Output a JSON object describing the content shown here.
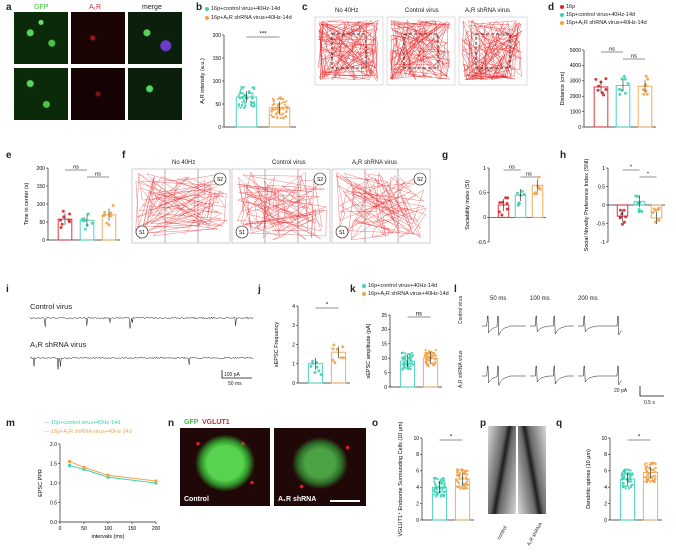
{
  "colors": {
    "p16": "#d9232a",
    "control": "#3ed1b5",
    "shrna": "#f2a34a",
    "track": "#e8262a"
  },
  "panel_letters": [
    "a",
    "b",
    "c",
    "d",
    "e",
    "f",
    "g",
    "h",
    "i",
    "j",
    "k",
    "l",
    "m",
    "n",
    "o",
    "p",
    "q"
  ],
  "a": {
    "cols": [
      "GFP",
      "A₁R",
      "merge"
    ]
  },
  "b": {
    "legend": [
      "16p+control virus+40Hz-14d",
      "16p+A₁R shRNA virus+40Hz-14d"
    ],
    "ylabel": "A₁R intensity (a.u.)",
    "sig": "***"
  },
  "c": {
    "titles": [
      "No 40Hz",
      "Control virus",
      "A₁R shRNA virus"
    ]
  },
  "d": {
    "legend": [
      "16p",
      "16p+control virus+40Hz-14d",
      "16p+A₁R shRNA virus+40Hz-14d"
    ],
    "ylabel": "Distance (cm)",
    "sig": [
      "ns",
      "ns"
    ]
  },
  "e": {
    "ylabel": "Time in center (s)",
    "sig": [
      "ns",
      "ns"
    ]
  },
  "f": {
    "titles": [
      "No 40Hz",
      "Control virus",
      "A₁R shRNA virus"
    ],
    "markers": [
      "S1",
      "S2"
    ]
  },
  "g": {
    "ylabel": "Sociability index (SI)",
    "sig": [
      "ns",
      "ns"
    ]
  },
  "h": {
    "ylabel": "Social Novelty Preference Index (SNI)",
    "sig": [
      "*",
      "*"
    ]
  },
  "i": {
    "traces": [
      "Control virus",
      "A₁R shRNA virus"
    ],
    "scale_y": "100 pA",
    "scale_x": "50 ms"
  },
  "j": {
    "ylabel": "sEPSC Frequency",
    "sig": "*"
  },
  "k": {
    "legend": [
      "16p+control virus+40Hz-14d",
      "16p+A₁R shRNA virus+40Hz-14d"
    ],
    "ylabel": "sEPSC amplitude (pA)",
    "sig": "ns"
  },
  "l": {
    "intervals": [
      "50 ms",
      "100 ms",
      "200 ms"
    ],
    "rows": [
      "Control virus",
      "A₁R shRNA virus"
    ],
    "scale_y": "20 pA",
    "scale_x": "0.5 s"
  },
  "m": {
    "legend": [
      "16p+control virus+40Hz-14d",
      "16p+A₁R shRNA virus+40Hz-14d"
    ],
    "ylabel": "EPSC PPR",
    "xlabel": "intervals (ms)"
  },
  "n": {
    "stain": [
      "GFP",
      "VGLUT1"
    ],
    "captions": [
      "Control",
      "A₁R shRNA"
    ]
  },
  "o": {
    "ylabel": "VGLUT1⁺ Endsome Surrounding Cells (10 μm)",
    "sig": "*"
  },
  "p": {
    "captions": [
      "control",
      "A₁R shRNA"
    ]
  },
  "q": {
    "ylabel": "Dendritic spines (10 μm)",
    "sig": "*"
  },
  "chart_data": [
    {
      "id": "b",
      "type": "bar",
      "categories": [
        "control",
        "shRNA"
      ],
      "values": [
        65,
        42
      ],
      "ylim": [
        0,
        200
      ],
      "yticks": [
        0,
        50,
        100,
        150,
        200
      ],
      "ylabel": "A₁R intensity (a.u.)"
    },
    {
      "id": "d",
      "type": "bar",
      "categories": [
        "16p",
        "control",
        "shRNA"
      ],
      "values": [
        2600,
        2700,
        2650
      ],
      "ylim": [
        0,
        5000
      ],
      "yticks": [
        0,
        1000,
        2000,
        3000,
        4000,
        5000
      ],
      "ylabel": "Distance (cm)"
    },
    {
      "id": "e",
      "type": "bar",
      "categories": [
        "16p",
        "control",
        "shRNA"
      ],
      "values": [
        58,
        55,
        70
      ],
      "ylim": [
        0,
        200
      ],
      "yticks": [
        0,
        50,
        100,
        150,
        200
      ],
      "ylabel": "Time in center (s)"
    },
    {
      "id": "g",
      "type": "bar",
      "categories": [
        "16p",
        "control",
        "shRNA"
      ],
      "values": [
        0.25,
        0.45,
        0.65
      ],
      "ylim": [
        -0.5,
        1.0
      ],
      "yticks": [
        -0.5,
        0.0,
        0.5,
        1.0
      ],
      "ylabel": "Sociability index (SI)"
    },
    {
      "id": "h",
      "type": "bar",
      "categories": [
        "16p",
        "control",
        "shRNA"
      ],
      "values": [
        -0.3,
        0.1,
        -0.35
      ],
      "ylim": [
        -1.0,
        1.0
      ],
      "yticks": [
        -1.0,
        -0.5,
        0.0,
        0.5,
        1.0
      ],
      "ylabel": "Social Novelty Preference Index (SNI)"
    },
    {
      "id": "j",
      "type": "bar",
      "categories": [
        "control",
        "shRNA"
      ],
      "values": [
        1.0,
        1.6
      ],
      "ylim": [
        0,
        4
      ],
      "yticks": [
        0,
        1,
        2,
        3,
        4
      ],
      "ylabel": "sEPSC Frequency"
    },
    {
      "id": "k",
      "type": "bar",
      "categories": [
        "control",
        "shRNA"
      ],
      "values": [
        9,
        10
      ],
      "ylim": [
        0,
        25
      ],
      "yticks": [
        0,
        5,
        10,
        15,
        20,
        25
      ],
      "ylabel": "sEPSC amplitude (pA)"
    },
    {
      "id": "m",
      "type": "line",
      "x": [
        20,
        50,
        100,
        200
      ],
      "series": [
        {
          "name": "16p+control virus+40Hz-14d",
          "values": [
            1.45,
            1.35,
            1.15,
            1.0
          ]
        },
        {
          "name": "16p+A₁R shRNA virus+40Hz-14d",
          "values": [
            1.55,
            1.4,
            1.2,
            1.05
          ]
        }
      ],
      "xlim": [
        0,
        200
      ],
      "xticks": [
        0,
        50,
        100,
        150,
        200
      ],
      "ylim": [
        0,
        2.0
      ],
      "yticks": [
        0.0,
        0.5,
        1.0,
        1.5,
        2.0
      ],
      "ylabel": "EPSC PPR",
      "xlabel": "intervals (ms)"
    },
    {
      "id": "o",
      "type": "bar",
      "categories": [
        "control",
        "shRNA"
      ],
      "values": [
        4.0,
        5.0
      ],
      "ylim": [
        0,
        10
      ],
      "yticks": [
        0,
        2,
        4,
        6,
        8,
        10
      ],
      "ylabel": "VGLUT1⁺ Endsome Surrounding Cells (10 μm)"
    },
    {
      "id": "q",
      "type": "bar",
      "categories": [
        "control",
        "shRNA"
      ],
      "values": [
        5.0,
        5.8
      ],
      "ylim": [
        0,
        10
      ],
      "yticks": [
        0,
        2,
        4,
        6,
        8,
        10
      ],
      "ylabel": "Dendritic spines (10 μm)"
    }
  ]
}
